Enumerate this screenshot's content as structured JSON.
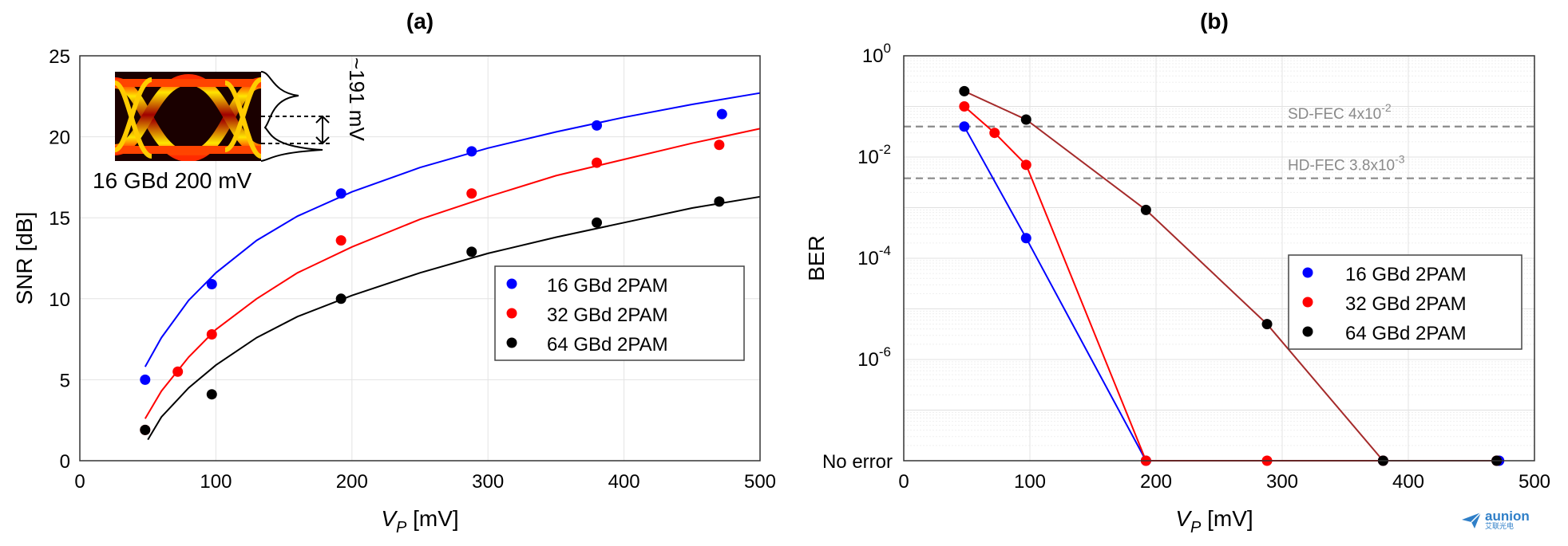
{
  "chart_data": [
    {
      "id": "a",
      "type": "scatter",
      "panel_label": "(a)",
      "xlabel_main": "V",
      "xlabel_sub": "P",
      "xlabel_unit": " [mV]",
      "ylabel": "SNR [dB]",
      "xlim": [
        0,
        500
      ],
      "ylim": [
        0,
        25
      ],
      "xticks": [
        0,
        100,
        200,
        300,
        400,
        500
      ],
      "yticks": [
        0,
        5,
        10,
        15,
        20,
        25
      ],
      "grid": true,
      "legend_position": "center-right",
      "series": [
        {
          "name": "16 GBd 2PAM",
          "color": "#0000ff",
          "x": [
            48,
            97,
            192,
            288,
            380,
            472
          ],
          "y": [
            5.0,
            10.9,
            16.5,
            19.1,
            20.7,
            21.4
          ],
          "fit": {
            "x": [
              48,
              60,
              80,
              100,
              130,
              160,
              200,
              250,
              300,
              350,
              400,
              450,
              500
            ],
            "y": [
              5.8,
              7.6,
              9.9,
              11.6,
              13.6,
              15.1,
              16.6,
              18.1,
              19.3,
              20.3,
              21.2,
              22.0,
              22.7
            ]
          }
        },
        {
          "name": "32 GBd 2PAM",
          "color": "#ff0000",
          "x": [
            48,
            72,
            97,
            192,
            288,
            380,
            470
          ],
          "y": [
            1.9,
            5.5,
            7.8,
            13.6,
            16.5,
            18.4,
            19.5
          ],
          "fit": {
            "x": [
              48,
              60,
              80,
              100,
              130,
              160,
              200,
              250,
              300,
              350,
              400,
              450,
              500
            ],
            "y": [
              2.6,
              4.3,
              6.4,
              8.1,
              10.0,
              11.6,
              13.2,
              14.9,
              16.3,
              17.6,
              18.6,
              19.6,
              20.5
            ]
          }
        },
        {
          "name": "64 GBd 2PAM",
          "color": "#000000",
          "x": [
            48,
            97,
            192,
            288,
            380,
            470
          ],
          "y": [
            1.9,
            4.1,
            10.0,
            12.9,
            14.7,
            16.0
          ],
          "fit": {
            "x": [
              50,
              60,
              80,
              100,
              130,
              160,
              200,
              250,
              300,
              350,
              400,
              450,
              500
            ],
            "y": [
              1.3,
              2.7,
              4.5,
              5.9,
              7.6,
              8.9,
              10.2,
              11.6,
              12.8,
              13.8,
              14.7,
              15.6,
              16.3
            ]
          }
        }
      ],
      "inset": {
        "caption": "16 GBd 200 mV",
        "annotation": "~191 mV"
      }
    },
    {
      "id": "b",
      "type": "line",
      "panel_label": "(b)",
      "xlabel_main": "V",
      "xlabel_sub": "P",
      "xlabel_unit": " [mV]",
      "ylabel": "BER",
      "xlim": [
        0,
        500
      ],
      "ylog": true,
      "ylim_log10": [
        -8,
        0
      ],
      "xticks": [
        0,
        100,
        200,
        300,
        400,
        500
      ],
      "yticks_exp": [
        0,
        -2,
        -4,
        -6
      ],
      "no_error_label": "No error",
      "grid": true,
      "legend_position": "center-right",
      "thresholds": [
        {
          "label": "SD-FEC 4x10",
          "exp": "-2",
          "value": 0.04
        },
        {
          "label": "HD-FEC 3.8x10",
          "exp": "-3",
          "value": 0.0038
        }
      ],
      "series": [
        {
          "name": "16 GBd 2PAM",
          "color": "#0000ff",
          "x": [
            48,
            97,
            192,
            380,
            472
          ],
          "y": [
            0.04,
            0.00025,
            "no error",
            "no error",
            "no error"
          ]
        },
        {
          "name": "32 GBd 2PAM",
          "color": "#ff0000",
          "x": [
            48,
            72,
            97,
            192,
            288,
            380,
            470
          ],
          "y": [
            0.1,
            0.03,
            0.007,
            "no error",
            "no error",
            "no error",
            "no error"
          ]
        },
        {
          "name": "64 GBd 2PAM",
          "color": "#000000",
          "line_color": "#a52a2a",
          "x": [
            48,
            97,
            192,
            288,
            380,
            470
          ],
          "y": [
            0.2,
            0.055,
            0.0009,
            5e-06,
            "no error",
            "no error"
          ]
        }
      ]
    }
  ],
  "watermark": {
    "text": "aunion",
    "subtext": "艾联光电"
  }
}
